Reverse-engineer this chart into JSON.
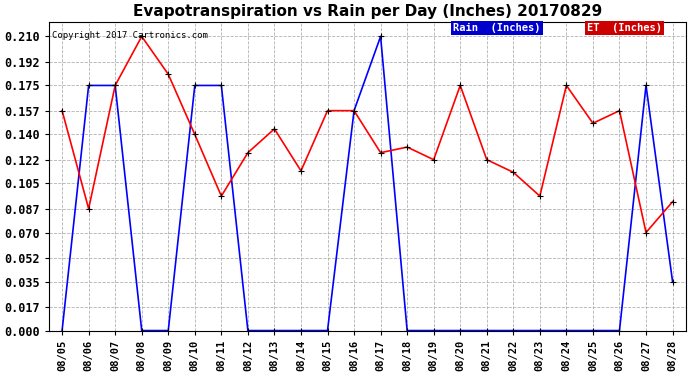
{
  "title": "Evapotranspiration vs Rain per Day (Inches) 20170829",
  "copyright": "Copyright 2017 Cartronics.com",
  "dates": [
    "08/05",
    "08/06",
    "08/07",
    "08/08",
    "08/09",
    "08/10",
    "08/11",
    "08/12",
    "08/13",
    "08/14",
    "08/15",
    "08/16",
    "08/17",
    "08/18",
    "08/19",
    "08/20",
    "08/21",
    "08/22",
    "08/23",
    "08/24",
    "08/25",
    "08/26",
    "08/27",
    "08/28"
  ],
  "rain": [
    0.0,
    0.175,
    0.175,
    0.0,
    0.0,
    0.175,
    0.175,
    0.0,
    0.0,
    0.0,
    0.0,
    0.157,
    0.21,
    0.0,
    0.0,
    0.0,
    0.0,
    0.0,
    0.0,
    0.0,
    0.0,
    0.0,
    0.175,
    0.035
  ],
  "et": [
    0.157,
    0.087,
    0.175,
    0.21,
    0.183,
    0.14,
    0.096,
    0.127,
    0.144,
    0.114,
    0.157,
    0.157,
    0.127,
    0.131,
    0.122,
    0.175,
    0.122,
    0.113,
    0.096,
    0.175,
    0.148,
    0.157,
    0.07,
    0.092
  ],
  "rain_color": "#0000FF",
  "et_color": "#FF0000",
  "background_color": "#FFFFFF",
  "grid_color": "#AAAAAA",
  "ylim": [
    0.0,
    0.2205
  ],
  "yticks": [
    0.0,
    0.017,
    0.035,
    0.052,
    0.07,
    0.087,
    0.105,
    0.122,
    0.14,
    0.157,
    0.175,
    0.192,
    0.21
  ],
  "legend_bg_rain": "#0000CC",
  "legend_bg_et": "#CC0000",
  "legend_text_color": "#FFFFFF"
}
